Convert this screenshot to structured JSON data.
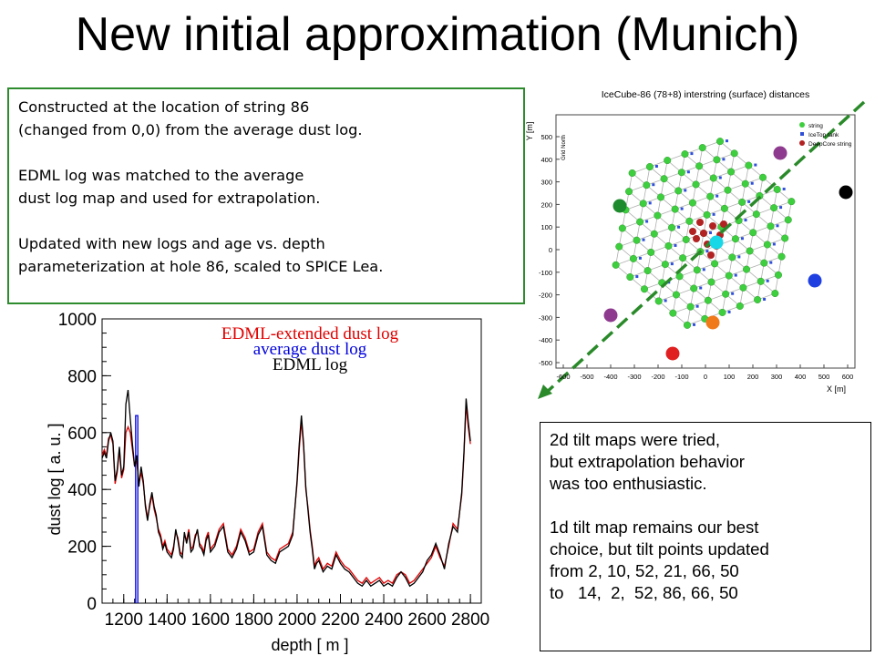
{
  "slide": {
    "title": "New initial approximation (Munich)"
  },
  "text_box_1": {
    "lines": [
      "Constructed at the location of string 86",
      "(changed from 0,0) from the average dust log.",
      "",
      "EDML log was matched to the average",
      "dust log map and used for extrapolation.",
      "",
      "Updated with new logs and age vs. depth",
      "parameterization at hole 86, scaled to SPICE Lea."
    ],
    "border_color": "#2e8b2e"
  },
  "text_box_2": {
    "lines": [
      "2d tilt maps were tried,",
      "but extrapolation behavior",
      "was too enthusiastic.",
      "",
      "1d tilt map remains our best",
      "choice, but tilt points updated",
      "from 2, 10, 52, 21, 66, 50",
      "to   14,  2,  52, 86, 66, 50"
    ]
  },
  "map": {
    "title": "IceCube-86 (78+8) interstring (surface) distances",
    "legend": [
      "string",
      "IceTop tank",
      "DeepCore string"
    ],
    "xlabel": "X [m]",
    "ylabel": "Y [m]",
    "north_label": "Grid North",
    "x_ticks": [
      "-600",
      "-500",
      "-400",
      "-300",
      "-200",
      "-100",
      "0",
      "100",
      "200",
      "300",
      "400",
      "500",
      "600"
    ],
    "y_ticks": [
      "500",
      "400",
      "300",
      "200",
      "100",
      "0",
      "-100",
      "-200",
      "-300",
      "-400",
      "-500"
    ],
    "colors": {
      "string": "#3ecf3e",
      "deepcore": "#b22222",
      "line": "#b0b0b0",
      "icetop": "#2f4fd8",
      "arrow": "#2a8a2a"
    },
    "highlight_markers": [
      {
        "color_name": "purple",
        "color": "#8e3a8e"
      },
      {
        "color_name": "black",
        "color": "#000000"
      },
      {
        "color_name": "darkgreen",
        "color": "#1e8a2e"
      },
      {
        "color_name": "cyan",
        "color": "#18d8e8"
      },
      {
        "color_name": "blue",
        "color": "#1f3fe0"
      },
      {
        "color_name": "purple",
        "color": "#8e3a8e"
      },
      {
        "color_name": "orange",
        "color": "#f07a1a"
      },
      {
        "color_name": "red",
        "color": "#e02020"
      }
    ]
  },
  "chart_data": {
    "type": "line",
    "title": "",
    "xlabel": "depth [ m ]",
    "ylabel": "dust log [ a. u. ]",
    "xlim": [
      1100,
      2850
    ],
    "ylim": [
      0,
      1000
    ],
    "x_ticks": [
      "1200",
      "1400",
      "1600",
      "1800",
      "2000",
      "2200",
      "2400",
      "2600",
      "2800"
    ],
    "y_ticks": [
      "0",
      "200",
      "400",
      "600",
      "800",
      "1000"
    ],
    "legend_position": "top-right",
    "series": [
      {
        "name": "EDML-extended dust log",
        "color": "#e00000",
        "x": [
          1100,
          1110,
          1120,
          1130,
          1140,
          1150,
          1160,
          1170,
          1180,
          1190,
          1200,
          1210,
          1220,
          1230,
          1240,
          1250,
          1260,
          1270,
          1280,
          1290,
          1300,
          1310,
          1320,
          1330,
          1340,
          1350,
          1360,
          1370,
          1380,
          1390,
          1400,
          1410,
          1420,
          1430,
          1440,
          1450,
          1460,
          1470,
          1480,
          1490,
          1500,
          1510,
          1520,
          1530,
          1540,
          1550,
          1560,
          1570,
          1580,
          1590,
          1600,
          1620,
          1640,
          1660,
          1680,
          1700,
          1720,
          1740,
          1760,
          1780,
          1800,
          1820,
          1840,
          1860,
          1880,
          1900,
          1920,
          1940,
          1960,
          1980,
          2000,
          2010,
          2020,
          2030,
          2040,
          2050,
          2060,
          2070,
          2080,
          2090,
          2100,
          2120,
          2140,
          2160,
          2180,
          2200,
          2220,
          2240,
          2260,
          2280,
          2300,
          2320,
          2340,
          2360,
          2380,
          2400,
          2420,
          2440,
          2460,
          2480,
          2500,
          2520,
          2540,
          2560,
          2580,
          2600,
          2620,
          2640,
          2660,
          2680,
          2700,
          2720,
          2740,
          2760,
          2770,
          2780,
          2790,
          2800
        ],
        "values": [
          520,
          540,
          520,
          580,
          590,
          560,
          420,
          460,
          540,
          440,
          470,
          600,
          620,
          600,
          540,
          480,
          500,
          420,
          460,
          420,
          350,
          300,
          340,
          380,
          330,
          300,
          260,
          240,
          200,
          220,
          190,
          180,
          170,
          200,
          250,
          230,
          180,
          170,
          240,
          220,
          260,
          190,
          200,
          240,
          250,
          210,
          200,
          180,
          230,
          250,
          190,
          210,
          260,
          280,
          190,
          170,
          200,
          260,
          230,
          180,
          190,
          250,
          280,
          180,
          160,
          150,
          190,
          200,
          210,
          250,
          420,
          540,
          640,
          550,
          400,
          340,
          260,
          200,
          130,
          150,
          160,
          120,
          140,
          130,
          180,
          150,
          130,
          120,
          100,
          80,
          70,
          90,
          70,
          80,
          90,
          70,
          80,
          70,
          100,
          110,
          100,
          70,
          80,
          100,
          120,
          140,
          160,
          200,
          160,
          130,
          200,
          280,
          260,
          380,
          520,
          700,
          620,
          560
        ]
      },
      {
        "name": "average dust log",
        "color": "#0000dd",
        "x": [
          1255,
          1255,
          1265,
          1265
        ],
        "values": [
          0,
          660,
          660,
          0
        ]
      },
      {
        "name": "EDML  log",
        "color": "#000000",
        "x": [
          1100,
          1110,
          1120,
          1130,
          1140,
          1150,
          1160,
          1170,
          1180,
          1190,
          1200,
          1210,
          1220,
          1230,
          1240,
          1250,
          1260,
          1270,
          1280,
          1290,
          1300,
          1310,
          1320,
          1330,
          1340,
          1350,
          1360,
          1370,
          1380,
          1390,
          1400,
          1410,
          1420,
          1430,
          1440,
          1450,
          1460,
          1470,
          1480,
          1490,
          1500,
          1510,
          1520,
          1530,
          1540,
          1550,
          1560,
          1570,
          1580,
          1590,
          1600,
          1620,
          1640,
          1660,
          1680,
          1700,
          1720,
          1740,
          1760,
          1780,
          1800,
          1820,
          1840,
          1860,
          1880,
          1900,
          1920,
          1940,
          1960,
          1980,
          2000,
          2010,
          2020,
          2030,
          2040,
          2050,
          2060,
          2070,
          2080,
          2090,
          2100,
          2120,
          2140,
          2160,
          2180,
          2200,
          2220,
          2240,
          2260,
          2280,
          2300,
          2320,
          2340,
          2360,
          2380,
          2400,
          2420,
          2440,
          2460,
          2480,
          2500,
          2520,
          2540,
          2560,
          2580,
          2600,
          2620,
          2640,
          2660,
          2680,
          2700,
          2720,
          2740,
          2760,
          2770,
          2780,
          2790,
          2800
        ],
        "values": [
          510,
          530,
          510,
          570,
          600,
          570,
          430,
          470,
          550,
          450,
          480,
          700,
          750,
          650,
          560,
          480,
          520,
          410,
          480,
          430,
          340,
          290,
          350,
          390,
          340,
          310,
          250,
          230,
          190,
          210,
          180,
          170,
          160,
          190,
          260,
          220,
          170,
          160,
          250,
          210,
          250,
          180,
          190,
          230,
          260,
          200,
          190,
          170,
          220,
          240,
          180,
          200,
          250,
          270,
          180,
          160,
          190,
          250,
          220,
          170,
          180,
          240,
          270,
          170,
          150,
          140,
          180,
          190,
          200,
          240,
          430,
          560,
          660,
          560,
          410,
          330,
          250,
          190,
          120,
          140,
          150,
          110,
          130,
          120,
          170,
          140,
          120,
          110,
          90,
          70,
          60,
          80,
          60,
          70,
          80,
          60,
          70,
          60,
          90,
          110,
          90,
          60,
          70,
          90,
          110,
          150,
          170,
          210,
          170,
          120,
          210,
          270,
          250,
          390,
          530,
          720,
          640,
          570
        ]
      }
    ]
  }
}
